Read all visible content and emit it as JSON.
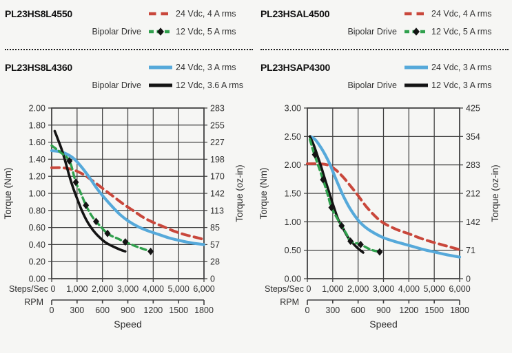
{
  "colors": {
    "red": "#c9473b",
    "green": "#2fa04c",
    "blue": "#56a9da",
    "black": "#141414",
    "grid": "#3f3f3f",
    "text": "#2e2e2e"
  },
  "panels": [
    {
      "model_top": "PL23HS8L4550",
      "drive_label_top": "Bipolar Drive",
      "model_bottom": "PL23HS8L4360",
      "drive_label_bottom": "Bipolar Drive",
      "legend_top": [
        {
          "label": "24 Vdc, 4 A rms",
          "color": "red",
          "dash": true,
          "diamond": false
        },
        {
          "label": "12 Vdc, 5 A rms",
          "color": "green",
          "dash": true,
          "diamond": true
        }
      ],
      "legend_bottom": [
        {
          "label": "24 Vdc, 3 A rms",
          "color": "blue",
          "dash": false,
          "diamond": false
        },
        {
          "label": "12 Vdc, 3.6 A rms",
          "color": "black",
          "dash": false,
          "diamond": false
        }
      ]
    },
    {
      "model_top": "PL23HSAL4500",
      "drive_label_top": "Bipolar Drive",
      "model_bottom": "PL23HSAP4300",
      "drive_label_bottom": "Bipolar Drive",
      "legend_top": [
        {
          "label": "24 Vdc, 4 A rms",
          "color": "red",
          "dash": true,
          "diamond": false
        },
        {
          "label": "12 Vdc, 5 A rms",
          "color": "green",
          "dash": true,
          "diamond": true
        }
      ],
      "legend_bottom": [
        {
          "label": "24 Vdc, 3 A rms",
          "color": "blue",
          "dash": false,
          "diamond": false
        },
        {
          "label": "12 Vdc, 3 A rms",
          "color": "black",
          "dash": false,
          "diamond": false
        }
      ]
    }
  ],
  "chart_data": [
    {
      "type": "line",
      "xlabel": "Speed",
      "ylabel_left": "Torque (Nm)",
      "ylabel_right": "Torque (oz-in)",
      "xlim": [
        0,
        6000
      ],
      "ylim": [
        0,
        2.0
      ],
      "grid": true,
      "x_rows": [
        {
          "label": "Steps/Sec",
          "ticks": [
            "0",
            "1,000",
            "2,000",
            "3,000",
            "4,000",
            "5,000",
            "6,000"
          ]
        },
        {
          "label": "RPM",
          "ticks": [
            "0",
            "300",
            "600",
            "900",
            "1200",
            "1500",
            "1800"
          ]
        }
      ],
      "yticks_left": [
        "0.00",
        "0.20",
        "0.40",
        "0.60",
        "0.80",
        "1.00",
        "1.20",
        "1.40",
        "1.60",
        "1.80",
        "2.00"
      ],
      "yticks_right": [
        "0",
        "28",
        "57",
        "85",
        "113",
        "142",
        "170",
        "198",
        "227",
        "255",
        "283"
      ],
      "series": [
        {
          "name": "24 Vdc, 4 A rms",
          "color": "red",
          "style": "dashed",
          "points": [
            [
              0,
              1.3
            ],
            [
              400,
              1.3
            ],
            [
              800,
              1.28
            ],
            [
              1200,
              1.23
            ],
            [
              1600,
              1.15
            ],
            [
              2000,
              1.06
            ],
            [
              2400,
              0.97
            ],
            [
              2800,
              0.88
            ],
            [
              3200,
              0.8
            ],
            [
              3600,
              0.72
            ],
            [
              4000,
              0.66
            ],
            [
              4400,
              0.61
            ],
            [
              4800,
              0.56
            ],
            [
              5200,
              0.52
            ],
            [
              5600,
              0.49
            ],
            [
              6000,
              0.46
            ]
          ]
        },
        {
          "name": "24 Vdc, 3 A rms",
          "color": "blue",
          "style": "solid",
          "points": [
            [
              0,
              1.5
            ],
            [
              300,
              1.49
            ],
            [
              600,
              1.46
            ],
            [
              900,
              1.4
            ],
            [
              1200,
              1.3
            ],
            [
              1500,
              1.18
            ],
            [
              1800,
              1.05
            ],
            [
              2100,
              0.94
            ],
            [
              2400,
              0.84
            ],
            [
              2700,
              0.75
            ],
            [
              3000,
              0.68
            ],
            [
              3400,
              0.61
            ],
            [
              3800,
              0.56
            ],
            [
              4200,
              0.52
            ],
            [
              4600,
              0.48
            ],
            [
              5000,
              0.45
            ],
            [
              5500,
              0.42
            ],
            [
              6000,
              0.4
            ]
          ]
        },
        {
          "name": "12 Vdc, 3.6 A rms",
          "color": "black",
          "style": "solid",
          "points": [
            [
              120,
              1.73
            ],
            [
              250,
              1.63
            ],
            [
              400,
              1.51
            ],
            [
              550,
              1.36
            ],
            [
              700,
              1.2
            ],
            [
              850,
              1.06
            ],
            [
              1000,
              0.94
            ],
            [
              1200,
              0.79
            ],
            [
              1400,
              0.67
            ],
            [
              1600,
              0.58
            ],
            [
              1800,
              0.51
            ],
            [
              2100,
              0.43
            ],
            [
              2400,
              0.38
            ],
            [
              2700,
              0.34
            ],
            [
              2900,
              0.32
            ]
          ]
        },
        {
          "name": "12 Vdc, 5 A rms",
          "color": "green",
          "style": "dashed",
          "points": [
            [
              0,
              1.56
            ],
            [
              350,
              1.48
            ],
            [
              700,
              1.38
            ],
            [
              950,
              1.13
            ],
            [
              1150,
              1.0
            ],
            [
              1350,
              0.86
            ],
            [
              1550,
              0.75
            ],
            [
              1750,
              0.67
            ],
            [
              2200,
              0.53
            ],
            [
              2600,
              0.47
            ],
            [
              2900,
              0.43
            ],
            [
              3400,
              0.37
            ],
            [
              3900,
              0.32
            ]
          ],
          "markers": [
            [
              700,
              1.38
            ],
            [
              950,
              1.13
            ],
            [
              1350,
              0.86
            ],
            [
              1750,
              0.67
            ],
            [
              2200,
              0.53
            ],
            [
              2900,
              0.43
            ],
            [
              3900,
              0.32
            ]
          ]
        }
      ]
    },
    {
      "type": "line",
      "xlabel": "Speed",
      "ylabel_left": "Torque (Nm)",
      "ylabel_right": "Torque (oz-in)",
      "xlim": [
        0,
        6000
      ],
      "ylim": [
        0,
        3.0
      ],
      "grid": true,
      "x_rows": [
        {
          "label": "Steps/Sec",
          "ticks": [
            "0",
            "1,000",
            "2,000",
            "3,000",
            "4,000",
            "5,000",
            "6,000"
          ]
        },
        {
          "label": "RPM",
          "ticks": [
            "0",
            "300",
            "600",
            "900",
            "1200",
            "1500",
            "1800"
          ]
        }
      ],
      "yticks_left": [
        "0.00",
        "0.50",
        "1.00",
        "1.50",
        "2.00",
        "2.50",
        "3.00"
      ],
      "yticks_right": [
        "0",
        "71",
        "142",
        "212",
        "283",
        "354",
        "425"
      ],
      "series": [
        {
          "name": "24 Vdc, 4 A rms",
          "color": "red",
          "style": "dashed",
          "points": [
            [
              0,
              2.02
            ],
            [
              400,
              2.02
            ],
            [
              800,
              2.0
            ],
            [
              1100,
              1.92
            ],
            [
              1400,
              1.79
            ],
            [
              1700,
              1.63
            ],
            [
              2000,
              1.46
            ],
            [
              2300,
              1.28
            ],
            [
              2600,
              1.13
            ],
            [
              2900,
              1.01
            ],
            [
              3200,
              0.93
            ],
            [
              3600,
              0.85
            ],
            [
              4000,
              0.79
            ],
            [
              4400,
              0.72
            ],
            [
              4800,
              0.66
            ],
            [
              5200,
              0.61
            ],
            [
              5600,
              0.56
            ],
            [
              6000,
              0.51
            ]
          ]
        },
        {
          "name": "24 Vdc, 3 A rms",
          "color": "blue",
          "style": "solid",
          "points": [
            [
              120,
              2.5
            ],
            [
              300,
              2.45
            ],
            [
              500,
              2.33
            ],
            [
              700,
              2.18
            ],
            [
              900,
              2.0
            ],
            [
              1100,
              1.78
            ],
            [
              1300,
              1.57
            ],
            [
              1500,
              1.38
            ],
            [
              1700,
              1.22
            ],
            [
              2000,
              1.03
            ],
            [
              2300,
              0.9
            ],
            [
              2600,
              0.81
            ],
            [
              3000,
              0.72
            ],
            [
              3400,
              0.66
            ],
            [
              3800,
              0.61
            ],
            [
              4200,
              0.56
            ],
            [
              4600,
              0.51
            ],
            [
              5000,
              0.47
            ],
            [
              5500,
              0.42
            ],
            [
              6000,
              0.38
            ]
          ]
        },
        {
          "name": "12 Vdc, 3 A rms",
          "color": "black",
          "style": "solid",
          "points": [
            [
              100,
              2.5
            ],
            [
              250,
              2.35
            ],
            [
              400,
              2.16
            ],
            [
              550,
              1.96
            ],
            [
              700,
              1.74
            ],
            [
              850,
              1.53
            ],
            [
              1000,
              1.32
            ],
            [
              1200,
              1.06
            ],
            [
              1400,
              0.89
            ],
            [
              1600,
              0.73
            ],
            [
              1800,
              0.62
            ],
            [
              2000,
              0.53
            ],
            [
              2200,
              0.46
            ]
          ]
        },
        {
          "name": "12 Vdc, 5 A rms",
          "color": "green",
          "style": "dashed",
          "points": [
            [
              100,
              2.45
            ],
            [
              250,
              2.22
            ],
            [
              450,
              1.96
            ],
            [
              620,
              1.74
            ],
            [
              800,
              1.48
            ],
            [
              950,
              1.25
            ],
            [
              1150,
              1.08
            ],
            [
              1350,
              0.93
            ],
            [
              1550,
              0.78
            ],
            [
              1700,
              0.66
            ],
            [
              2100,
              0.6
            ],
            [
              2500,
              0.51
            ],
            [
              2850,
              0.47
            ]
          ],
          "markers": [
            [
              300,
              2.18
            ],
            [
              620,
              1.74
            ],
            [
              950,
              1.25
            ],
            [
              1350,
              0.93
            ],
            [
              1700,
              0.66
            ],
            [
              2100,
              0.6
            ],
            [
              2850,
              0.47
            ]
          ]
        }
      ]
    }
  ]
}
